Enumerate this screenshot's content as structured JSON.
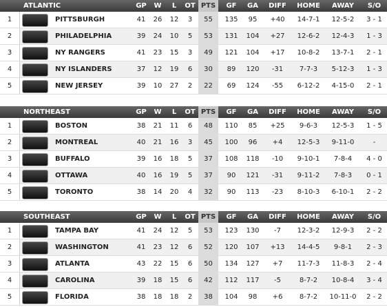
{
  "divisions": [
    {
      "name": "ATLANTIC",
      "columns": [
        "GP",
        "W",
        "L",
        "OT",
        "PTS",
        "GF",
        "GA",
        "DIFF",
        "HOME",
        "AWAY",
        "S/O"
      ],
      "rows": [
        [
          1,
          "PITTSBURGH",
          41,
          26,
          12,
          3,
          55,
          135,
          95,
          "+40",
          "14-7-1",
          "12-5-2",
          "3 - 1"
        ],
        [
          2,
          "PHILADELPHIA",
          39,
          24,
          10,
          5,
          53,
          131,
          104,
          "+27",
          "12-6-2",
          "12-4-3",
          "1 - 3"
        ],
        [
          3,
          "NY RANGERS",
          41,
          23,
          15,
          3,
          49,
          121,
          104,
          "+17",
          "10-8-2",
          "13-7-1",
          "2 - 1"
        ],
        [
          4,
          "NY ISLANDERS",
          37,
          12,
          19,
          6,
          30,
          89,
          120,
          "-31",
          "7-7-3",
          "5-12-3",
          "1 - 3"
        ],
        [
          5,
          "NEW JERSEY",
          39,
          10,
          27,
          2,
          22,
          69,
          124,
          "-55",
          "6-12-2",
          "4-15-0",
          "2 - 1"
        ]
      ]
    },
    {
      "name": "NORTHEAST",
      "columns": [
        "GP",
        "W",
        "L",
        "OT",
        "PTS",
        "GF",
        "GA",
        "DIFF",
        "HOME",
        "AWAY",
        "S/O"
      ],
      "rows": [
        [
          1,
          "BOSTON",
          38,
          21,
          11,
          6,
          48,
          110,
          85,
          "+25",
          "9-6-3",
          "12-5-3",
          "1 - 5"
        ],
        [
          2,
          "MONTREAL",
          40,
          21,
          16,
          3,
          45,
          100,
          96,
          "+4",
          "12-5-3",
          "9-11-0",
          "-"
        ],
        [
          3,
          "BUFFALO",
          39,
          16,
          18,
          5,
          37,
          108,
          118,
          "-10",
          "9-10-1",
          "7-8-4",
          "4 - 0"
        ],
        [
          4,
          "OTTAWA",
          40,
          16,
          19,
          5,
          37,
          90,
          121,
          "-31",
          "9-11-2",
          "7-8-3",
          "0 - 1"
        ],
        [
          5,
          "TORONTO",
          38,
          14,
          20,
          4,
          32,
          90,
          113,
          "-23",
          "8-10-3",
          "6-10-1",
          "2 - 2"
        ]
      ]
    },
    {
      "name": "SOUTHEAST",
      "columns": [
        "GP",
        "W",
        "L",
        "OT",
        "PTS",
        "GF",
        "GA",
        "DIFF",
        "HOME",
        "AWAY",
        "S/O"
      ],
      "rows": [
        [
          1,
          "TAMPA BAY",
          41,
          24,
          12,
          5,
          53,
          123,
          130,
          "-7",
          "12-3-2",
          "12-9-3",
          "2 - 2"
        ],
        [
          2,
          "WASHINGTON",
          41,
          23,
          12,
          6,
          52,
          120,
          107,
          "+13",
          "14-4-5",
          "9-8-1",
          "2 - 3"
        ],
        [
          3,
          "ATLANTA",
          43,
          22,
          15,
          6,
          50,
          134,
          127,
          "+7",
          "11-7-3",
          "11-8-3",
          "2 - 4"
        ],
        [
          4,
          "CAROLINA",
          39,
          18,
          15,
          6,
          42,
          112,
          117,
          "-5",
          "8-7-2",
          "10-8-4",
          "3 - 4"
        ],
        [
          5,
          "FLORIDA",
          38,
          18,
          18,
          2,
          38,
          104,
          98,
          "+6",
          "8-7-2",
          "10-11-0",
          "2 - 2"
        ]
      ]
    }
  ]
}
